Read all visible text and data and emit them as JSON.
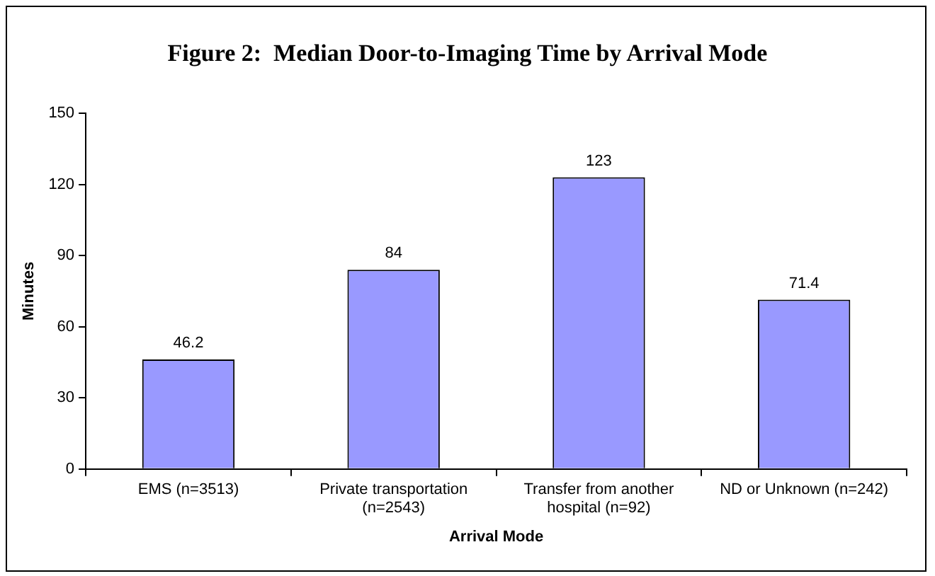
{
  "chart_data": {
    "type": "bar",
    "title": "Figure 2:  Median Door-to-Imaging Time by Arrival Mode",
    "xlabel": "Arrival Mode",
    "ylabel": "Minutes",
    "categories": [
      "EMS (n=3513)",
      "Private transportation (n=2543)",
      "Transfer from another hospital (n=92)",
      "ND or Unknown (n=242)"
    ],
    "values": [
      46.2,
      84,
      123,
      71.4
    ],
    "color": "#9999ff",
    "ylim": [
      0,
      150
    ],
    "yticks": [
      0,
      30,
      60,
      90,
      120,
      150
    ],
    "grid": false,
    "data_labels": true
  }
}
